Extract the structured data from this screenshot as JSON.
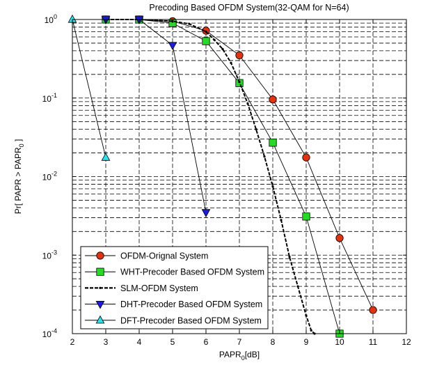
{
  "chart_data": {
    "type": "line",
    "title": "Precoding Based OFDM System(32-QAM for N=64)",
    "xlabel_main": "PAPR",
    "xlabel_sub": "0",
    "xlabel_tail": "[dB]",
    "ylabel_main": "Pr[ PAPR > PAPR",
    "ylabel_sub": "0",
    "ylabel_tail": " ]",
    "xlim": [
      2,
      12
    ],
    "ylim": [
      0.0001,
      1
    ],
    "yscale": "log",
    "grid": true,
    "legend_position": "bottom-left",
    "x_ticks": [
      2,
      3,
      4,
      5,
      6,
      7,
      8,
      9,
      10,
      11,
      12
    ],
    "y_ticks": [
      {
        "value": 1,
        "base": "10",
        "exp": "0"
      },
      {
        "value": 0.1,
        "base": "10",
        "exp": "-1"
      },
      {
        "value": 0.01,
        "base": "10",
        "exp": "-2"
      },
      {
        "value": 0.001,
        "base": "10",
        "exp": "-3"
      },
      {
        "value": 0.0001,
        "base": "10",
        "exp": "-4"
      }
    ],
    "series": [
      {
        "name": "OFDM-Orignal System",
        "color": "#e8300a",
        "marker": "circle",
        "line_style": "solid",
        "x": [
          3,
          4,
          5,
          6,
          7,
          8,
          9,
          10,
          11
        ],
        "y": [
          1,
          1,
          0.95,
          0.72,
          0.35,
          0.096,
          0.0175,
          0.00165,
          0.0002
        ]
      },
      {
        "name": "WHT-Precoder Based OFDM System",
        "color": "#22dd22",
        "marker": "square",
        "line_style": "solid",
        "x": [
          3,
          4,
          5,
          6,
          7,
          8,
          9,
          10
        ],
        "y": [
          1,
          1,
          0.9,
          0.53,
          0.155,
          0.027,
          0.0031,
          0.0001
        ]
      },
      {
        "name": "SLM-OFDM System",
        "color": "#000000",
        "marker": "dot",
        "line_style": "dashed",
        "x": [
          3,
          4,
          5,
          5.5,
          6,
          6.25,
          6.5,
          6.75,
          7,
          7.25,
          7.5,
          7.75,
          8,
          8.25,
          8.5,
          8.75,
          9,
          9.15,
          9.25
        ],
        "y": [
          1,
          1,
          0.95,
          0.88,
          0.7,
          0.55,
          0.42,
          0.28,
          0.16,
          0.085,
          0.04,
          0.018,
          0.0075,
          0.0028,
          0.00095,
          0.0004,
          0.00017,
          0.00011,
          0.0001
        ]
      },
      {
        "name": "DHT-Precoder Based OFDM System",
        "color": "#1a1aee",
        "marker": "triangle-down",
        "line_style": "solid",
        "x": [
          3,
          4,
          5,
          6
        ],
        "y": [
          1,
          1,
          0.47,
          0.0035
        ]
      },
      {
        "name": "DFT-Precoder Based OFDM System",
        "color": "#22e5ee",
        "marker": "triangle-up",
        "line_style": "solid",
        "x": [
          2,
          3
        ],
        "y": [
          1,
          0.0175
        ]
      }
    ]
  }
}
